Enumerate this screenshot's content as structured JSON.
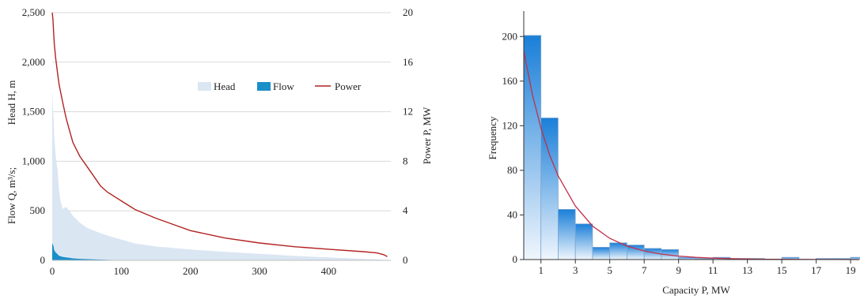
{
  "chart_data": [
    {
      "type": "area",
      "xlabel": "",
      "ylabel_left": "Flow Q, m³/s; Head H, m",
      "ylabel_left_top": "Head H, m",
      "ylabel_left_bottom": "Flow Q, m³/s;",
      "ylabel_right": "Power P, MW",
      "xlim": [
        0,
        490
      ],
      "ylim_left": [
        0,
        2500
      ],
      "ylim_right": [
        0,
        20
      ],
      "x_ticks": [
        "0",
        "100",
        "200",
        "300",
        "400"
      ],
      "y_ticks_left": [
        "0",
        "500",
        "1,000",
        "1,500",
        "2,000",
        "2,500"
      ],
      "y_ticks_right": [
        "0",
        "4",
        "8",
        "12",
        "16",
        "20"
      ],
      "grid": true,
      "legend_position": "center-right",
      "series": [
        {
          "name": "Head",
          "kind": "area",
          "color": "#dbe6f3",
          "x": [
            0,
            1,
            2,
            3,
            5,
            8,
            10,
            12,
            15,
            20,
            25,
            30,
            40,
            50,
            60,
            80,
            100,
            120,
            150,
            200,
            250,
            300,
            350,
            400,
            450,
            470,
            480,
            485
          ],
          "y": [
            1700,
            1550,
            1450,
            1250,
            1050,
            900,
            700,
            600,
            520,
            540,
            500,
            450,
            380,
            330,
            300,
            250,
            210,
            170,
            140,
            110,
            85,
            65,
            45,
            30,
            15,
            10,
            5,
            0
          ]
        },
        {
          "name": "Flow",
          "kind": "area",
          "color": "#1a8fc8",
          "x": [
            0,
            1,
            2,
            3,
            5,
            8,
            10,
            15,
            20,
            30,
            40,
            60,
            80,
            100,
            120,
            150
          ],
          "y": [
            170,
            160,
            140,
            100,
            80,
            60,
            45,
            35,
            30,
            20,
            15,
            10,
            5,
            3,
            1,
            0
          ]
        },
        {
          "name": "Power",
          "kind": "line",
          "axis": "right",
          "color": "#b22222",
          "x": [
            0,
            1,
            2,
            3,
            5,
            8,
            10,
            15,
            20,
            25,
            30,
            40,
            50,
            60,
            70,
            80,
            100,
            120,
            150,
            175,
            200,
            250,
            300,
            350,
            400,
            450,
            470,
            480,
            485
          ],
          "y": [
            20,
            19.5,
            18.5,
            17.5,
            16.3,
            15,
            14.2,
            12.8,
            11.5,
            10.5,
            9.5,
            8.4,
            7.6,
            6.8,
            6.0,
            5.5,
            4.8,
            4.1,
            3.4,
            2.9,
            2.4,
            1.8,
            1.4,
            1.1,
            0.9,
            0.7,
            0.6,
            0.45,
            0.3
          ]
        }
      ]
    },
    {
      "type": "bar",
      "xlabel": "Capacity P, MW",
      "ylabel": "Frequency",
      "xlim": [
        0,
        19.5
      ],
      "ylim": [
        0,
        220
      ],
      "x_ticks": [
        "1",
        "3",
        "5",
        "7",
        "9",
        "11",
        "13",
        "15",
        "17",
        "19"
      ],
      "y_ticks": [
        "0",
        "40",
        "80",
        "120",
        "160",
        "200"
      ],
      "grid": false,
      "bin_width": 1.0,
      "bin_start": 0.0,
      "values": [
        201,
        127,
        45,
        32,
        11,
        15,
        13,
        10,
        9,
        2,
        1,
        2,
        1,
        1,
        0,
        2,
        0,
        1,
        1,
        2
      ],
      "bar_color_top": "#1a7fd8",
      "bar_color_bottom": "#f0f6fd",
      "fit": {
        "kind": "exponential",
        "color": "#c0304a",
        "x": [
          0,
          0.5,
          1,
          1.5,
          2,
          3,
          4,
          5,
          6,
          7,
          8,
          9,
          10,
          11,
          12,
          13,
          14,
          15,
          16,
          17,
          18,
          19,
          19.5
        ],
        "y": [
          187,
          148,
          118,
          94,
          75,
          48,
          30,
          19,
          12,
          7.7,
          4.9,
          3.1,
          2.0,
          1.3,
          0.8,
          0.5,
          0.3,
          0.2,
          0.13,
          0.08,
          0.05,
          0.03,
          0.02
        ]
      }
    }
  ]
}
